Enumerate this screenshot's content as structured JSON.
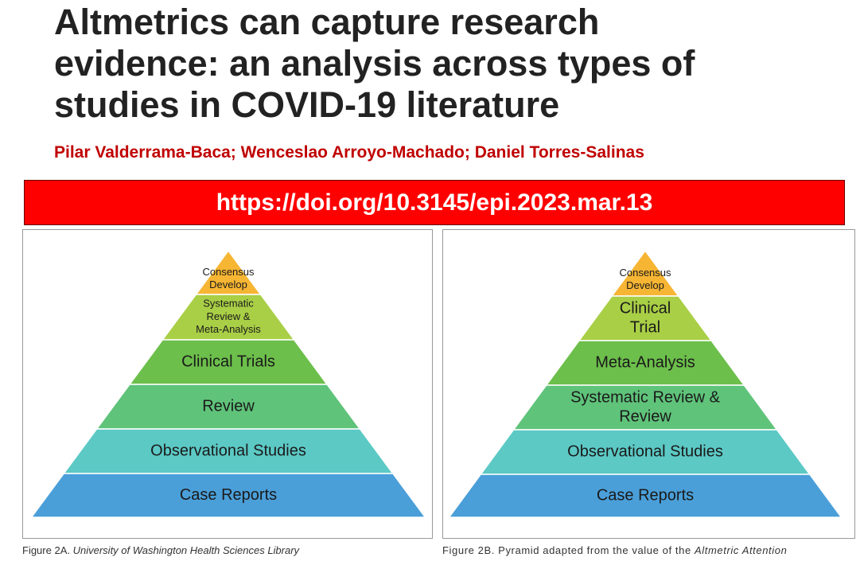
{
  "header": {
    "title_lines": [
      "Altmetrics can capture research",
      "evidence: an analysis across types of",
      "studies in COVID-19 literature"
    ],
    "authors": "Pilar Valderrama-Baca; Wenceslao Arroyo-Machado; Daniel Torres-Salinas",
    "doi": "https://doi.org/10.3145/epi.2023.mar.13"
  },
  "figures": [
    {
      "tiers": [
        {
          "lines": [
            "Consensus",
            "Develop"
          ]
        },
        {
          "lines": [
            "Systematic",
            "Review &",
            "Meta-Analysis"
          ]
        },
        {
          "lines": [
            "Clinical Trials"
          ]
        },
        {
          "lines": [
            "Review"
          ]
        },
        {
          "lines": [
            "Observational Studies"
          ]
        },
        {
          "lines": [
            "Case Reports"
          ]
        }
      ],
      "caption": {
        "prefix": "Figure 2A.",
        "italic": "University of Washington Health Sciences Library"
      }
    },
    {
      "tiers": [
        {
          "lines": [
            "Consensus",
            "Develop"
          ]
        },
        {
          "lines": [
            "Clinical",
            "Trial"
          ]
        },
        {
          "lines": [
            "Meta-Analysis"
          ]
        },
        {
          "lines": [
            "Systematic Review &",
            "Review"
          ]
        },
        {
          "lines": [
            "Observational Studies"
          ]
        },
        {
          "lines": [
            "Case Reports"
          ]
        }
      ],
      "caption": {
        "prefix": "Figure 2B. Pyramid adapted from the value of the",
        "italic": "Altmetric Attention"
      }
    }
  ]
}
